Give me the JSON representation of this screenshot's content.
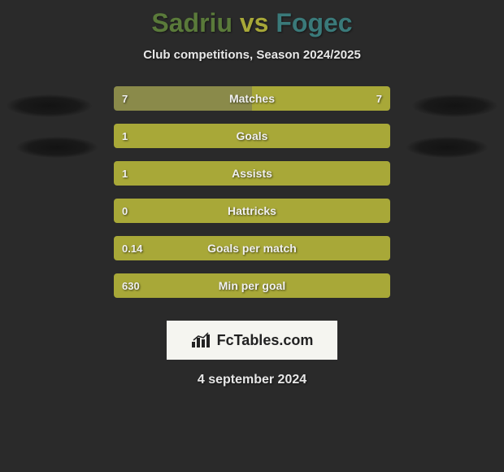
{
  "title": {
    "player1": "Sadriu",
    "vs": "vs",
    "player2": "Fogec",
    "player1_color": "#5a7a3a",
    "vs_color": "#a8a838",
    "player2_color": "#3a7a7a"
  },
  "subtitle": "Club competitions, Season 2024/2025",
  "colors": {
    "background": "#2a2a2a",
    "bar_left": "#8a8a38",
    "bar_right": "#a8a838",
    "bar_left_light": "#9a9a48",
    "bar_right_full": "#a8a838",
    "text": "#f0f0f0"
  },
  "bars": [
    {
      "label": "Matches",
      "left_val": "7",
      "right_val": "7",
      "left_pct": 50,
      "right_pct": 50,
      "left_color": "#8a8a4a",
      "right_color": "#a8a838"
    },
    {
      "label": "Goals",
      "left_val": "1",
      "right_val": "",
      "left_pct": 100,
      "right_pct": 0,
      "left_color": "#a8a838",
      "right_color": "#a8a838"
    },
    {
      "label": "Assists",
      "left_val": "1",
      "right_val": "",
      "left_pct": 100,
      "right_pct": 0,
      "left_color": "#a8a838",
      "right_color": "#a8a838"
    },
    {
      "label": "Hattricks",
      "left_val": "0",
      "right_val": "",
      "left_pct": 100,
      "right_pct": 0,
      "left_color": "#a8a838",
      "right_color": "#a8a838"
    },
    {
      "label": "Goals per match",
      "left_val": "0.14",
      "right_val": "",
      "left_pct": 100,
      "right_pct": 0,
      "left_color": "#a8a838",
      "right_color": "#a8a838"
    },
    {
      "label": "Min per goal",
      "left_val": "630",
      "right_val": "",
      "left_pct": 100,
      "right_pct": 0,
      "left_color": "#a8a838",
      "right_color": "#a8a838"
    }
  ],
  "bar_row_height": 30,
  "bar_row_gap": 16,
  "branding": "FcTables.com",
  "date": "4 september 2024"
}
